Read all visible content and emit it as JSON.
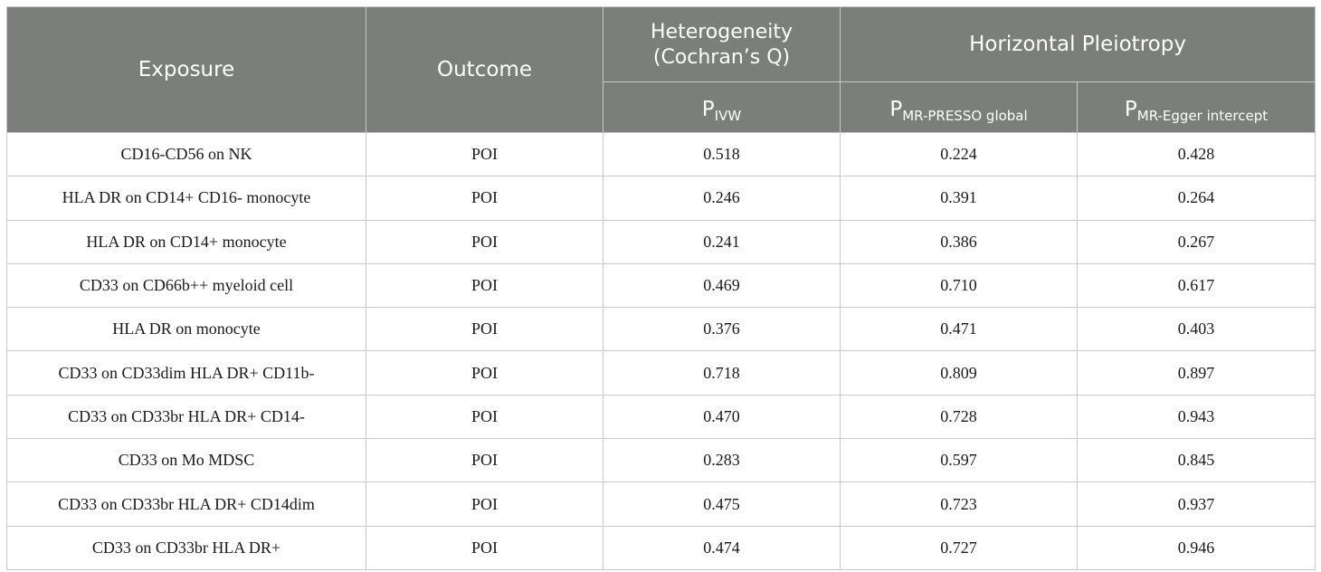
{
  "header": {
    "exposure": "Exposure",
    "outcome": "Outcome",
    "heterogeneity_line1": "Heterogeneity",
    "heterogeneity_line2": "(Cochran’s Q)",
    "horizontal_pleiotropy": "Horizontal Pleiotropy",
    "p_ivw_base": "P",
    "p_ivw_sub": "IVW",
    "p_presso_base": "P",
    "p_presso_sub": "MR-PRESSO global",
    "p_egger_base": "P",
    "p_egger_sub": "MR-Egger intercept"
  },
  "rows": [
    {
      "exposure": "CD16-CD56 on NK",
      "outcome": "POI",
      "p_ivw": "0.518",
      "p_presso": "0.224",
      "p_egger": "0.428"
    },
    {
      "exposure": "HLA DR on CD14+ CD16- monocyte",
      "outcome": "POI",
      "p_ivw": "0.246",
      "p_presso": "0.391",
      "p_egger": "0.264"
    },
    {
      "exposure": "HLA DR on CD14+ monocyte",
      "outcome": "POI",
      "p_ivw": "0.241",
      "p_presso": "0.386",
      "p_egger": "0.267"
    },
    {
      "exposure": "CD33 on CD66b++ myeloid cell",
      "outcome": "POI",
      "p_ivw": "0.469",
      "p_presso": "0.710",
      "p_egger": "0.617"
    },
    {
      "exposure": "HLA DR on monocyte",
      "outcome": "POI",
      "p_ivw": "0.376",
      "p_presso": "0.471",
      "p_egger": "0.403"
    },
    {
      "exposure": "CD33 on CD33dim HLA DR+ CD11b-",
      "outcome": "POI",
      "p_ivw": "0.718",
      "p_presso": "0.809",
      "p_egger": "0.897"
    },
    {
      "exposure": "CD33 on CD33br HLA DR+ CD14-",
      "outcome": "POI",
      "p_ivw": "0.470",
      "p_presso": "0.728",
      "p_egger": "0.943"
    },
    {
      "exposure": "CD33 on Mo MDSC",
      "outcome": "POI",
      "p_ivw": "0.283",
      "p_presso": "0.597",
      "p_egger": "0.845"
    },
    {
      "exposure": "CD33 on CD33br HLA DR+ CD14dim",
      "outcome": "POI",
      "p_ivw": "0.475",
      "p_presso": "0.723",
      "p_egger": "0.937"
    },
    {
      "exposure": "CD33 on CD33br HLA DR+",
      "outcome": "POI",
      "p_ivw": "0.474",
      "p_presso": "0.727",
      "p_egger": "0.946"
    }
  ]
}
